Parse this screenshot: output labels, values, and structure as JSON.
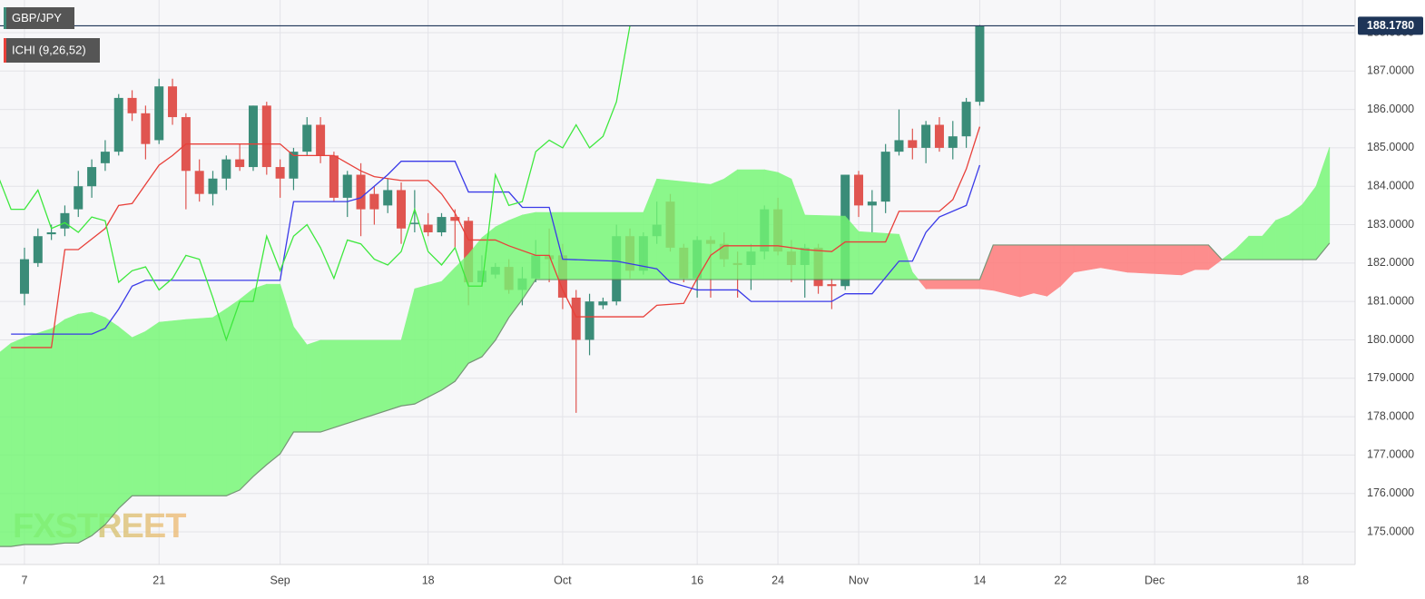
{
  "chart_data": {
    "type": "candlestick",
    "symbol": "GBP/JPY",
    "indicator": "ICHI (9,26,52)",
    "watermark": "FXSTREET",
    "xlim": [
      -1.82,
      98.9
    ],
    "xticks": [
      {
        "value": 0,
        "label": "7"
      },
      {
        "value": 10,
        "label": "21"
      },
      {
        "value": 19,
        "label": "Sep"
      },
      {
        "value": 30,
        "label": "18"
      },
      {
        "value": 40,
        "label": "Oct"
      },
      {
        "value": 50,
        "label": "16"
      },
      {
        "value": 56,
        "label": "24"
      },
      {
        "value": 62,
        "label": "Nov"
      },
      {
        "value": 71,
        "label": "14"
      },
      {
        "value": 77,
        "label": "22"
      },
      {
        "value": 84,
        "label": "Dec"
      },
      {
        "value": 95,
        "label": "18"
      }
    ],
    "ylim": [
      174.15,
      188.85
    ],
    "yticks": [
      {
        "value": 175,
        "label": "175.0000"
      },
      {
        "value": 176,
        "label": "176.0000"
      },
      {
        "value": 177,
        "label": "177.0000"
      },
      {
        "value": 178,
        "label": "178.0000"
      },
      {
        "value": 179,
        "label": "179.0000"
      },
      {
        "value": 180,
        "label": "180.0000"
      },
      {
        "value": 181,
        "label": "181.0000"
      },
      {
        "value": 182,
        "label": "182.0000"
      },
      {
        "value": 183,
        "label": "183.0000"
      },
      {
        "value": 184,
        "label": "184.0000"
      },
      {
        "value": 185,
        "label": "185.0000"
      },
      {
        "value": 186,
        "label": "186.0000"
      },
      {
        "value": 187,
        "label": "187.0000"
      },
      {
        "value": 188,
        "label": "188.0000"
      }
    ],
    "grid": true,
    "candles": {
      "up_color": "#3a8c78",
      "down_color": "#e05550",
      "x": [
        0,
        1,
        2,
        3,
        4,
        5,
        6,
        7,
        8,
        9,
        10,
        11,
        12,
        13,
        14,
        15,
        16,
        17,
        18,
        19,
        20,
        21,
        22,
        23,
        24,
        25,
        26,
        27,
        28,
        29,
        30,
        31,
        32,
        33,
        34,
        35,
        36,
        37,
        38,
        39,
        40,
        41,
        42,
        43,
        44,
        45,
        46,
        47,
        48,
        49,
        50,
        51,
        52,
        53,
        54,
        55,
        56,
        57,
        58,
        59,
        60,
        61,
        62,
        63,
        64,
        65,
        66,
        67,
        68,
        69,
        70,
        71
      ],
      "open": [
        181.2,
        182.0,
        182.75,
        182.9,
        183.4,
        184.0,
        184.6,
        184.9,
        186.3,
        185.9,
        185.2,
        186.6,
        185.8,
        184.4,
        183.8,
        184.2,
        184.7,
        184.5,
        186.1,
        184.5,
        184.2,
        184.9,
        185.6,
        184.8,
        183.7,
        184.3,
        183.8,
        183.5,
        183.9,
        183.05,
        183.0,
        182.8,
        183.2,
        183.1,
        181.5,
        181.7,
        181.9,
        181.3,
        181.6,
        182.2,
        182.2,
        181.1,
        180.0,
        180.9,
        181.0,
        182.7,
        181.8,
        182.7,
        183.6,
        182.4,
        181.6,
        182.6,
        182.5,
        182.0,
        181.95,
        182.3,
        183.4,
        182.3,
        181.95,
        182.4,
        181.45,
        181.4,
        184.3,
        183.5,
        183.6,
        184.9,
        185.2,
        185.0,
        185.6,
        185.0,
        185.3,
        186.2
      ],
      "high": [
        182.4,
        182.9,
        183.0,
        183.5,
        184.4,
        184.7,
        185.2,
        186.4,
        186.5,
        186.1,
        186.8,
        186.8,
        185.9,
        184.7,
        184.4,
        184.8,
        185.1,
        186.1,
        186.2,
        184.7,
        185.0,
        185.8,
        185.8,
        184.9,
        184.4,
        184.6,
        184.0,
        184.2,
        184.1,
        183.9,
        183.3,
        183.3,
        183.4,
        183.2,
        182.2,
        182.0,
        182.1,
        181.9,
        182.6,
        182.9,
        182.5,
        181.3,
        181.2,
        181.1,
        183.0,
        182.9,
        182.8,
        183.6,
        183.8,
        182.5,
        182.7,
        182.7,
        182.8,
        182.3,
        182.5,
        183.5,
        183.7,
        182.6,
        182.5,
        182.5,
        181.6,
        184.3,
        184.4,
        183.9,
        185.1,
        186.0,
        185.5,
        185.7,
        185.8,
        185.7,
        186.3,
        188.2
      ],
      "low": [
        180.9,
        181.9,
        182.6,
        182.7,
        183.2,
        183.7,
        184.4,
        184.8,
        185.7,
        184.7,
        185.1,
        185.6,
        183.4,
        183.6,
        183.5,
        183.9,
        184.4,
        184.4,
        184.3,
        183.7,
        183.9,
        184.8,
        184.6,
        183.6,
        183.2,
        182.7,
        183.0,
        183.3,
        182.5,
        182.8,
        182.7,
        182.7,
        182.4,
        180.9,
        181.4,
        181.6,
        181.2,
        180.9,
        181.5,
        181.5,
        180.8,
        178.1,
        179.6,
        180.8,
        180.9,
        181.6,
        181.7,
        182.5,
        182.3,
        181.5,
        181.1,
        181.1,
        181.9,
        181.1,
        181.3,
        182.1,
        182.2,
        181.5,
        181.1,
        181.2,
        180.8,
        181.3,
        183.2,
        182.8,
        183.3,
        184.8,
        184.7,
        184.6,
        184.9,
        184.7,
        185.0,
        186.1
      ],
      "close": [
        182.1,
        182.7,
        182.8,
        183.3,
        184.0,
        184.5,
        184.9,
        186.3,
        185.9,
        185.1,
        186.6,
        185.8,
        184.4,
        183.8,
        184.2,
        184.7,
        184.5,
        186.1,
        184.5,
        184.2,
        184.9,
        185.6,
        184.8,
        183.7,
        184.3,
        183.4,
        183.4,
        183.9,
        182.9,
        183.05,
        182.8,
        183.2,
        183.1,
        181.5,
        181.8,
        181.9,
        181.3,
        181.6,
        182.2,
        182.1,
        181.1,
        180.0,
        181.0,
        181.0,
        182.7,
        181.8,
        182.7,
        183.0,
        182.4,
        181.6,
        182.6,
        182.5,
        182.1,
        181.95,
        182.3,
        183.4,
        182.3,
        181.95,
        182.4,
        181.4,
        181.4,
        184.3,
        183.5,
        183.6,
        184.9,
        185.2,
        185.0,
        185.6,
        185.0,
        185.3,
        186.2,
        188.178
      ]
    },
    "cloud": {
      "up_color": "#74f774",
      "down_color": "#ff7676",
      "edge_color": "#5b7f5b",
      "x": [
        -2,
        -1,
        0,
        2,
        3,
        4,
        5,
        6,
        7,
        8,
        9,
        10,
        12,
        14,
        15,
        16,
        17,
        18,
        19,
        20,
        21,
        22,
        28,
        29,
        31,
        32,
        33,
        34,
        35,
        36,
        37,
        38,
        46,
        47,
        49,
        51,
        52,
        53,
        55,
        56,
        57,
        58,
        61,
        62,
        65,
        66,
        67,
        71,
        72,
        74,
        75,
        76,
        77,
        78,
        80,
        82,
        86,
        87,
        88,
        89,
        90,
        91,
        92,
        93,
        94,
        95,
        96,
        97
      ],
      "span_a": [
        179.63,
        179.91,
        180.06,
        180.29,
        180.53,
        180.67,
        180.72,
        180.58,
        180.34,
        180.06,
        180.22,
        180.46,
        180.53,
        180.58,
        180.81,
        181.05,
        181.33,
        181.45,
        181.45,
        180.34,
        179.87,
        179.99,
        179.99,
        181.33,
        181.52,
        181.88,
        182.23,
        182.66,
        182.94,
        183.11,
        183.25,
        183.32,
        183.32,
        184.19,
        184.12,
        184.05,
        184.19,
        184.43,
        184.43,
        184.36,
        184.19,
        183.25,
        183.22,
        182.82,
        182.75,
        181.76,
        181.33,
        181.33,
        181.29,
        181.12,
        181.22,
        181.14,
        181.4,
        181.76,
        181.88,
        181.76,
        181.69,
        181.83,
        181.83,
        182.09,
        182.35,
        182.7,
        182.7,
        183.11,
        183.25,
        183.53,
        184.0,
        185.02
      ],
      "span_b": [
        174.62,
        174.62,
        174.67,
        174.67,
        174.71,
        174.71,
        174.9,
        175.19,
        175.61,
        175.94,
        175.94,
        175.94,
        175.94,
        175.94,
        175.94,
        176.09,
        176.44,
        176.75,
        177.03,
        177.6,
        177.6,
        177.6,
        178.28,
        178.33,
        178.69,
        178.92,
        179.39,
        179.56,
        179.99,
        180.58,
        181.05,
        181.57,
        181.57,
        181.57,
        181.57,
        181.57,
        181.57,
        181.57,
        181.57,
        181.57,
        181.57,
        181.57,
        181.57,
        181.57,
        181.57,
        181.57,
        181.57,
        181.57,
        182.47,
        182.47,
        182.47,
        182.47,
        182.47,
        182.47,
        182.47,
        182.47,
        182.47,
        182.47,
        182.47,
        182.09,
        182.09,
        182.09,
        182.09,
        182.09,
        182.09,
        182.09,
        182.09,
        182.52
      ]
    },
    "lines": [
      {
        "color": "#e8403a",
        "x": [
          -1,
          2,
          3,
          4,
          6,
          7,
          8,
          10,
          11,
          12,
          19,
          20,
          23,
          24,
          25,
          26,
          28,
          30,
          31,
          32,
          33,
          35,
          36,
          38,
          39,
          40,
          41,
          44,
          46,
          47,
          49,
          50,
          51,
          52,
          56,
          58,
          60,
          61,
          64,
          65,
          68,
          69,
          70,
          71
        ],
        "values": [
          179.8,
          179.8,
          182.35,
          182.35,
          182.9,
          183.5,
          183.55,
          184.55,
          184.8,
          185.1,
          185.1,
          184.8,
          184.8,
          184.6,
          184.4,
          184.25,
          184.15,
          184.15,
          183.8,
          183.3,
          182.6,
          182.6,
          182.45,
          182.2,
          182.2,
          181.3,
          180.6,
          180.6,
          180.6,
          180.9,
          180.95,
          181.6,
          182.2,
          182.45,
          182.45,
          182.35,
          182.3,
          182.55,
          182.55,
          183.35,
          183.35,
          183.65,
          184.45,
          185.55
        ]
      },
      {
        "color": "#3a3ae8",
        "x": [
          -1,
          5,
          6,
          7,
          8,
          9,
          19,
          20,
          24,
          25,
          27,
          28,
          32,
          33,
          36,
          37,
          39,
          40,
          44,
          47,
          48,
          50,
          53,
          54,
          60,
          61,
          63,
          65,
          66,
          67,
          68,
          70,
          71
        ],
        "values": [
          180.15,
          180.15,
          180.3,
          180.8,
          181.4,
          181.55,
          181.55,
          183.6,
          183.6,
          183.7,
          184.3,
          184.65,
          184.65,
          183.85,
          183.85,
          183.45,
          183.45,
          182.1,
          182.05,
          181.85,
          181.5,
          181.3,
          181.3,
          181.0,
          181.0,
          181.2,
          181.2,
          182.05,
          182.05,
          182.8,
          183.2,
          183.5,
          184.55
        ]
      },
      {
        "color": "#3ee83e",
        "x": [
          -2,
          -1,
          0,
          1,
          2,
          3,
          4,
          5,
          6,
          7,
          8,
          9,
          10,
          11,
          12,
          13,
          14,
          15,
          16,
          17,
          18,
          19,
          20,
          21,
          22,
          23,
          24,
          25,
          26,
          27,
          28,
          29,
          30,
          31,
          32,
          33,
          34,
          35,
          36,
          37,
          38,
          39,
          40,
          41,
          42,
          43,
          44,
          45
        ],
        "values": [
          184.3,
          183.4,
          183.4,
          183.9,
          182.9,
          183.05,
          182.8,
          183.2,
          183.1,
          181.5,
          181.8,
          181.9,
          181.3,
          181.6,
          182.2,
          182.1,
          181.1,
          180.0,
          181.0,
          181.0,
          182.7,
          181.8,
          182.7,
          183.0,
          182.4,
          181.6,
          182.6,
          182.5,
          182.1,
          181.95,
          182.3,
          183.4,
          182.3,
          181.95,
          182.4,
          181.4,
          181.4,
          184.3,
          183.5,
          183.6,
          184.9,
          185.2,
          185.0,
          185.6,
          185.0,
          185.3,
          186.2,
          188.178
        ]
      }
    ],
    "price_line": {
      "value": 188.178,
      "label": "188.1780",
      "color": "#1e3558"
    }
  }
}
